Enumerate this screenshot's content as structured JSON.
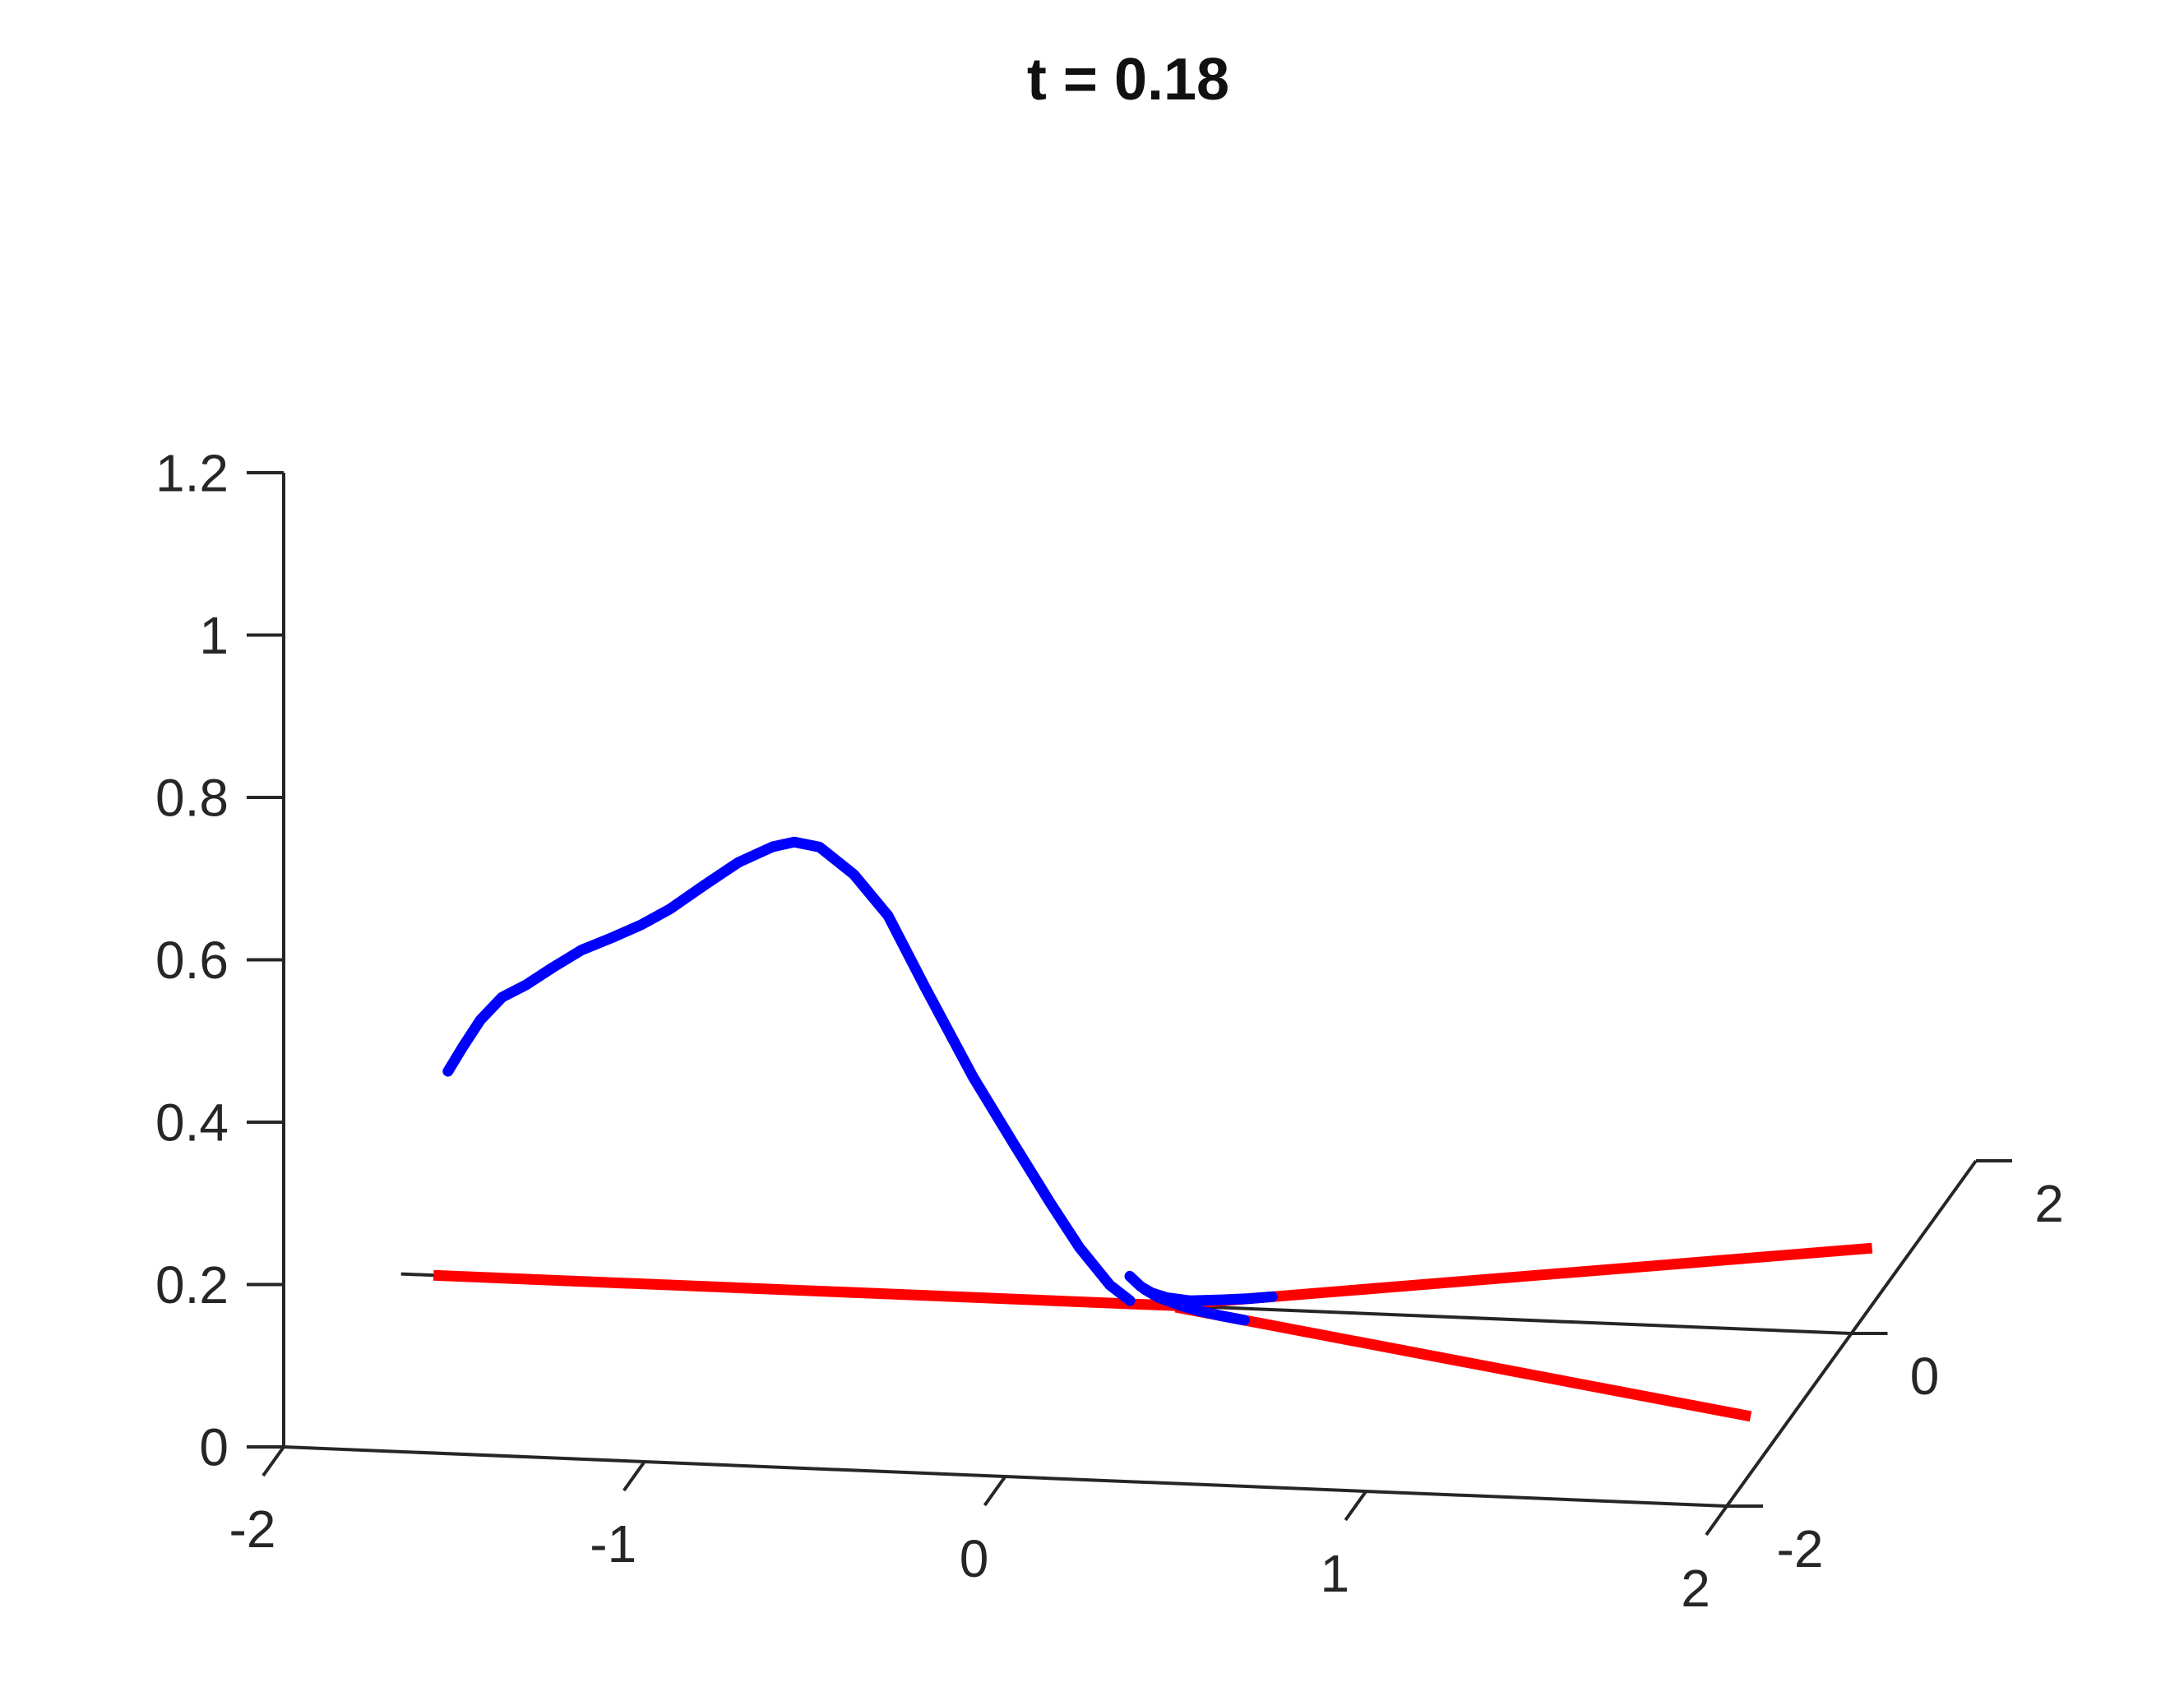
{
  "chart_data": {
    "type": "line",
    "subtype": "3d-line-plot",
    "title": "t = 0.18",
    "background": "#ffffff",
    "axis_color": "#262626",
    "text_color": "#262626",
    "grid": false,
    "legend": "none",
    "axes": {
      "x": {
        "range": [
          -2,
          2
        ],
        "ticks": [
          -2,
          -1,
          0,
          1,
          2
        ],
        "tick_labels": [
          "-2",
          "-1",
          "0",
          "1",
          "2"
        ]
      },
      "y": {
        "range": [
          -2,
          2
        ],
        "ticks": [
          -2,
          0,
          2
        ],
        "tick_labels": [
          "-2",
          "0",
          "2"
        ]
      },
      "z": {
        "range": [
          0,
          1.2
        ],
        "ticks": [
          0,
          0.2,
          0.4,
          0.6,
          0.8,
          1,
          1.2
        ],
        "tick_labels": [
          "0",
          "0.2",
          "0.4",
          "0.6",
          "0.8",
          "1",
          "1.2"
        ]
      }
    },
    "projection": {
      "ox": 345,
      "oy": 1760,
      "ex": [
        438.75,
        18
      ],
      "ey": [
        75.75,
        -105
      ],
      "ez": 987.5
    },
    "series": [
      {
        "name": "y0-reference-line",
        "color": "#262626",
        "width": 4,
        "cap": "butt",
        "points": [
          [
            -2.02,
            0,
            0
          ],
          [
            2.0,
            0,
            0
          ]
        ]
      },
      {
        "name": "red-characteristic-left",
        "color": "#ff0000",
        "width": 13,
        "cap": "butt",
        "points": [
          [
            -1.93,
            0,
            0
          ],
          [
            0.13,
            0,
            0
          ]
        ]
      },
      {
        "name": "red-characteristic-upper-right",
        "color": "#ff0000",
        "width": 13,
        "cap": "butt",
        "points": [
          [
            0.13,
            0.016,
            0
          ],
          [
            1.89,
            0.97,
            0
          ]
        ]
      },
      {
        "name": "red-characteristic-lower-right",
        "color": "#ff0000",
        "width": 13,
        "cap": "butt",
        "points": [
          [
            0.13,
            -0.016,
            0
          ],
          [
            1.89,
            -0.98,
            0
          ]
        ]
      },
      {
        "name": "blue-wave-profile",
        "color": "#0000ff",
        "width": 13,
        "cap": "round",
        "points": [
          [
            -1.89,
            0,
            0.252
          ],
          [
            -1.85,
            0,
            0.282
          ],
          [
            -1.8,
            0,
            0.317
          ],
          [
            -1.74,
            0,
            0.346
          ],
          [
            -1.675,
            0,
            0.362
          ],
          [
            -1.6,
            0,
            0.385
          ],
          [
            -1.52,
            0,
            0.408
          ],
          [
            -1.435,
            0,
            0.425
          ],
          [
            -1.355,
            0,
            0.442
          ],
          [
            -1.275,
            0,
            0.463
          ],
          [
            -1.18,
            0,
            0.494
          ],
          [
            -1.085,
            0,
            0.524
          ],
          [
            -0.99,
            0,
            0.545
          ],
          [
            -0.93,
            0,
            0.552
          ],
          [
            -0.86,
            0,
            0.547
          ],
          [
            -0.765,
            0,
            0.515
          ],
          [
            -0.67,
            0,
            0.466
          ],
          [
            -0.568,
            0,
            0.38
          ],
          [
            -0.435,
            0,
            0.272
          ],
          [
            -0.32,
            0,
            0.19
          ],
          [
            -0.22,
            0,
            0.12
          ],
          [
            -0.14,
            0,
            0.067
          ],
          [
            -0.055,
            0,
            0.022
          ],
          [
            0.0,
            0,
            0.004
          ]
        ]
      },
      {
        "name": "blue-tail-upper",
        "color": "#0000ff",
        "width": 13,
        "cap": "round",
        "points": [
          [
            0.0,
            0.0,
            0.034
          ],
          [
            0.03,
            0.0,
            0.022
          ],
          [
            0.06,
            0.005,
            0.014
          ],
          [
            0.1,
            0.013,
            0.008
          ],
          [
            0.16,
            0.035,
            0.003
          ],
          [
            0.24,
            0.078,
            0.001
          ],
          [
            0.31,
            0.114,
            0.0
          ],
          [
            0.37,
            0.146,
            0.0
          ]
        ]
      },
      {
        "name": "blue-tail-lower",
        "color": "#0000ff",
        "width": 13,
        "cap": "round",
        "points": [
          [
            0.04,
            0.0,
            0.019
          ],
          [
            0.08,
            -0.005,
            0.01
          ],
          [
            0.15,
            -0.027,
            0.003
          ],
          [
            0.2,
            -0.055,
            0.001
          ],
          [
            0.27,
            -0.093,
            0.0
          ],
          [
            0.34,
            -0.131,
            0.0
          ]
        ]
      }
    ]
  }
}
